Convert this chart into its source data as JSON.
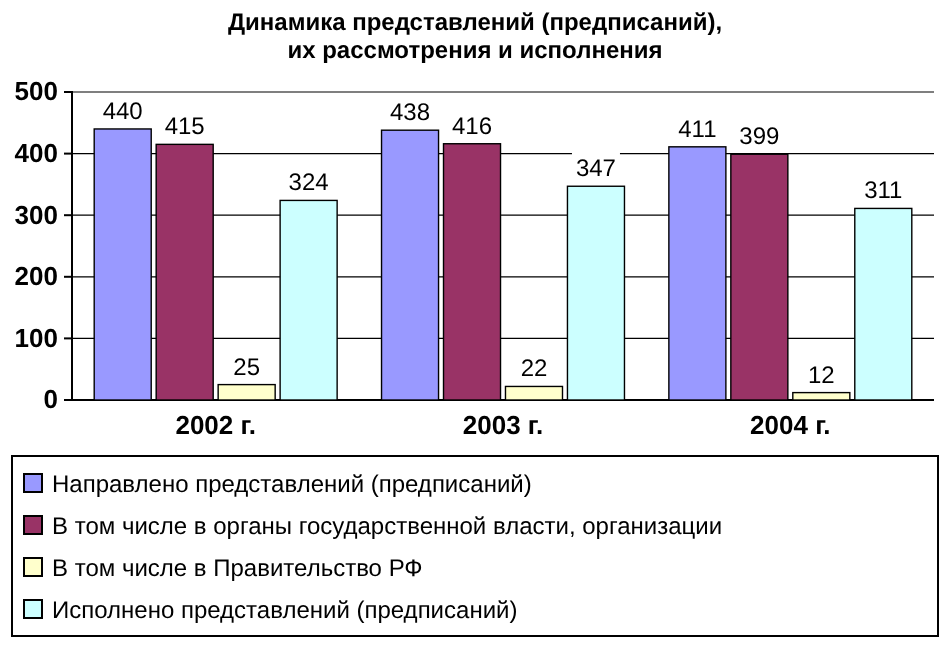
{
  "chart_data": {
    "type": "bar",
    "title": "Динамика представлений (предписаний),\nих рассмотрения и исполнения",
    "categories": [
      "2002 г.",
      "2003 г.",
      "2004 г."
    ],
    "series": [
      {
        "name": "Направлено представлений (предписаний)",
        "color": "#9999ff",
        "values": [
          440,
          438,
          411
        ]
      },
      {
        "name": "В том числе в органы государственной власти, организации",
        "color": "#993366",
        "values": [
          415,
          416,
          399
        ]
      },
      {
        "name": "В том числе в Правительство РФ",
        "color": "#ffffcc",
        "values": [
          25,
          22,
          12
        ]
      },
      {
        "name": "Исполнено представлений (предписаний)",
        "color": "#ccffff",
        "values": [
          324,
          347,
          311
        ]
      }
    ],
    "ylim": [
      0,
      500
    ],
    "yticks": [
      0,
      100,
      200,
      300,
      400,
      500
    ],
    "grid": "y",
    "legend": "bottom",
    "data_labels": true
  }
}
